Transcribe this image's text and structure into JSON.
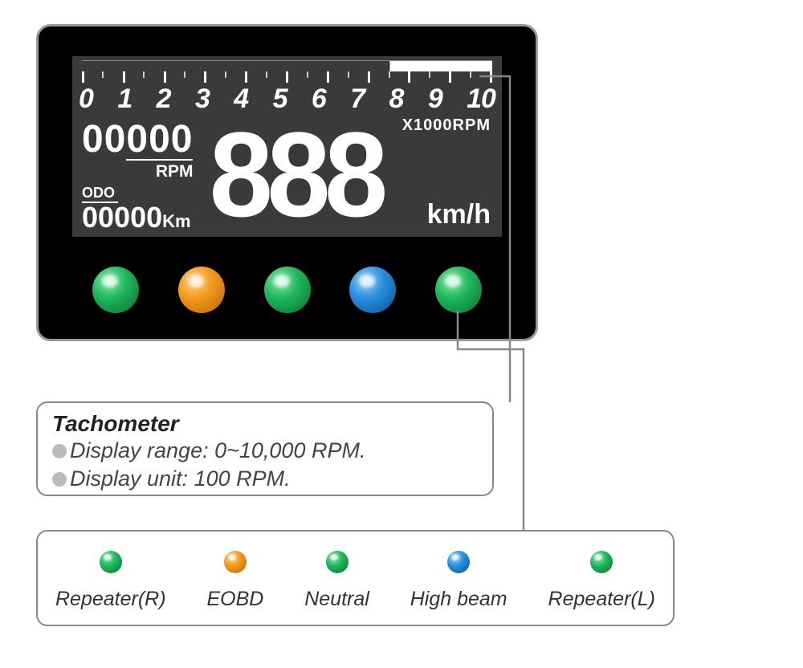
{
  "colors": {
    "panel_bg": "#000000",
    "panel_border": "#999999",
    "lcd_bg": "#3a3a3a",
    "lcd_fg": "#ffffff",
    "led_green": "#1fb85c",
    "led_green_dark": "#0a6b33",
    "led_orange": "#f39a1f",
    "led_orange_dark": "#b56500",
    "led_blue": "#2a8fe0",
    "led_blue_dark": "#0a4e8a",
    "callout_border": "#888888",
    "bullet": "#bbbbbb",
    "connector": "#888888"
  },
  "scale": {
    "ticks": [
      "0",
      "1",
      "2",
      "3",
      "4",
      "5",
      "6",
      "7",
      "8",
      "9",
      "10"
    ],
    "unit_label": "X1000RPM",
    "progress_active_from": 7
  },
  "rpm": {
    "digits": "00000",
    "label": "RPM"
  },
  "odo": {
    "label": "ODO",
    "digits": "00000",
    "unit": "Km"
  },
  "speed": {
    "digits": "888",
    "unit": "km/h"
  },
  "leds": [
    {
      "name": "repeater-r",
      "color": "green"
    },
    {
      "name": "eobd",
      "color": "orange"
    },
    {
      "name": "neutral",
      "color": "green"
    },
    {
      "name": "high-beam",
      "color": "blue"
    },
    {
      "name": "repeater-l",
      "color": "green"
    }
  ],
  "tacho_callout": {
    "title": "Tachometer",
    "line1": "Display range: 0~10,000 RPM.",
    "line2": "Display unit: 100 RPM."
  },
  "legend": [
    {
      "label": "Repeater(R)",
      "color": "green"
    },
    {
      "label": "EOBD",
      "color": "orange"
    },
    {
      "label": "Neutral",
      "color": "green"
    },
    {
      "label": "High beam",
      "color": "blue"
    },
    {
      "label": "Repeater(L)",
      "color": "green"
    }
  ],
  "typography": {
    "callout_title_size": 28,
    "callout_line_size": 27,
    "legend_label_size": 25,
    "scale_num_size": 34,
    "speed_size": 150
  }
}
